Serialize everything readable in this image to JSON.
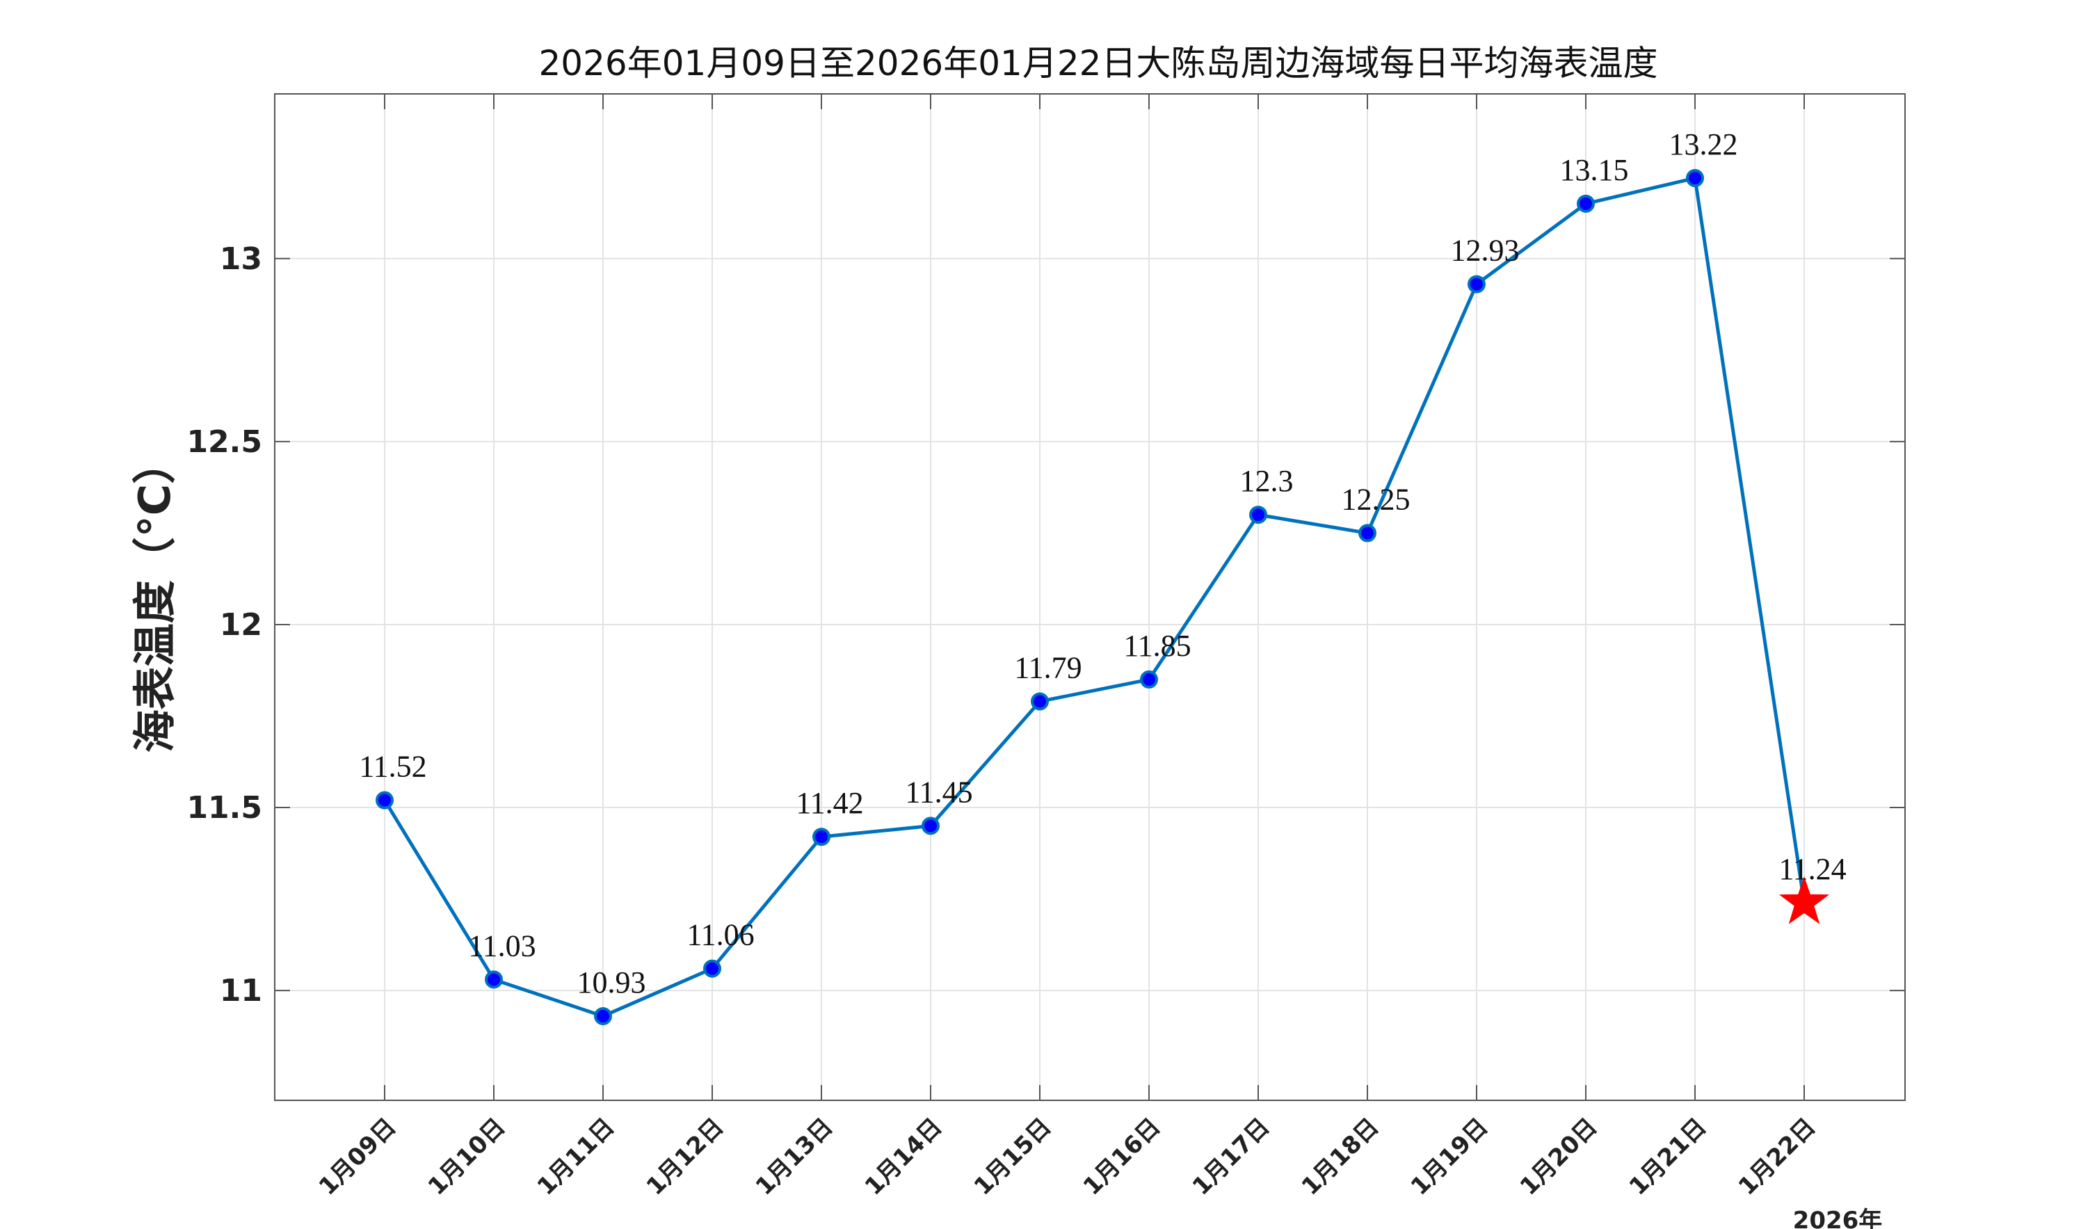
{
  "chart_data": {
    "type": "line",
    "title": "2026年01月09日至2026年01月22日大陈岛周边海域每日平均海表温度",
    "ylabel": "海表温度（°C）",
    "xlabel": "",
    "x_sublabel": "2026年",
    "categories": [
      "1月09日",
      "1月10日",
      "1月11日",
      "1月12日",
      "1月13日",
      "1月14日",
      "1月15日",
      "1月16日",
      "1月17日",
      "1月18日",
      "1月19日",
      "1月20日",
      "1月21日",
      "1月22日"
    ],
    "series": [
      {
        "values": [
          11.52,
          11.03,
          10.93,
          11.06,
          11.42,
          11.45,
          11.79,
          11.85,
          12.3,
          12.25,
          12.93,
          13.15,
          13.22,
          11.24
        ],
        "data_labels": [
          "11.52",
          "11.03",
          "10.93",
          "11.06",
          "11.42",
          "11.45",
          "11.79",
          "11.85",
          "12.3",
          "12.25",
          "12.93",
          "13.15",
          "13.22",
          "11.24"
        ]
      }
    ],
    "highlight": {
      "index": 13,
      "marker": "star",
      "color": "#ff0000"
    },
    "ylim": [
      10.7,
      13.45
    ],
    "yticks": [
      11,
      11.5,
      12,
      12.5,
      13
    ],
    "ytick_labels": [
      "11",
      "11.5",
      "12",
      "12.5",
      "13"
    ],
    "grid": true,
    "colors": {
      "line": "#0072bd",
      "marker_fill": "#0000ff",
      "marker_edge": "#0072bd",
      "star": "#ff0000"
    }
  }
}
